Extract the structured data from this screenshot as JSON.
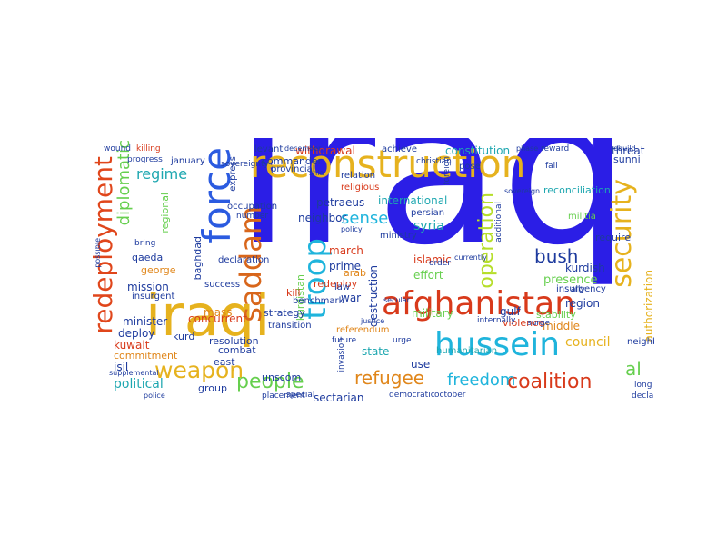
{
  "colors": {
    "blue": "#2b1ee6",
    "gold": "#e6b21e",
    "orange": "#e0861a",
    "red": "#d83a1b",
    "cyan": "#1fb4dc",
    "green": "#66cf4e",
    "lime": "#b6de2a",
    "navy": "#1e3b9e",
    "teal": "#1ea7b0"
  },
  "words": [
    {
      "text": "iraq",
      "color": "#2b1ee6"
    },
    {
      "text": "iraqi",
      "color": "#e6b21e"
    },
    {
      "text": "reconstruction",
      "color": "#e6b21e"
    },
    {
      "text": "afghanistan",
      "color": "#d83a1b"
    },
    {
      "text": "hussein",
      "color": "#1fb4dc"
    },
    {
      "text": "force",
      "color": "#2b5be0"
    },
    {
      "text": "redeployment",
      "color": "#e0461b"
    },
    {
      "text": "security",
      "color": "#e6b21e"
    },
    {
      "text": "saddam",
      "color": "#d8661b"
    },
    {
      "text": "troop",
      "color": "#1fb4dc"
    },
    {
      "text": "weapon",
      "color": "#e6b21e"
    },
    {
      "text": "coalition",
      "color": "#d83a1b"
    },
    {
      "text": "freedom",
      "color": "#1fb4dc"
    },
    {
      "text": "refugee",
      "color": "#e0861a"
    },
    {
      "text": "people",
      "color": "#66cf4e"
    },
    {
      "text": "operation",
      "color": "#b6de2a"
    },
    {
      "text": "bush",
      "color": "#1e3b9e"
    },
    {
      "text": "sense",
      "color": "#1fb4dc"
    },
    {
      "text": "al",
      "color": "#66cf4e"
    },
    {
      "text": "diplomatic",
      "color": "#66cf4e"
    },
    {
      "text": "regime",
      "color": "#1ea7b0"
    },
    {
      "text": "political",
      "color": "#1ea7b0"
    },
    {
      "text": "syria",
      "color": "#1ea7b0"
    },
    {
      "text": "sectarian",
      "color": "#1e3b9e"
    },
    {
      "text": "council",
      "color": "#e6b21e"
    },
    {
      "text": "international",
      "color": "#1ea7b0"
    },
    {
      "text": "constitution",
      "color": "#1ea7b0"
    },
    {
      "text": "withdrawal",
      "color": "#d83a1b"
    },
    {
      "text": "achieve",
      "color": "#1e3b9e"
    },
    {
      "text": "threat",
      "color": "#1e3b9e"
    },
    {
      "text": "military",
      "color": "#66cf4e"
    },
    {
      "text": "islamic",
      "color": "#d83a1b"
    },
    {
      "text": "effort",
      "color": "#66cf4e"
    },
    {
      "text": "presence",
      "color": "#66cf4e"
    },
    {
      "text": "kurdish",
      "color": "#1e3b9e"
    },
    {
      "text": "region",
      "color": "#1e3b9e"
    },
    {
      "text": "insurgency",
      "color": "#1e3b9e"
    },
    {
      "text": "militia",
      "color": "#66cf4e"
    },
    {
      "text": "stability",
      "color": "#66cf4e"
    },
    {
      "text": "violence",
      "color": "#d83a1b"
    },
    {
      "text": "middle",
      "color": "#e0861a"
    },
    {
      "text": "gulf",
      "color": "#1e3b9e"
    },
    {
      "text": "humanitarian",
      "color": "#1ea7b0"
    },
    {
      "text": "state",
      "color": "#1ea7b0"
    },
    {
      "text": "use",
      "color": "#1e3b9e"
    },
    {
      "text": "destruction",
      "color": "#1e3b9e"
    },
    {
      "text": "war",
      "color": "#1e3b9e"
    },
    {
      "text": "kurdistan",
      "color": "#66cf4e"
    },
    {
      "text": "redeploy",
      "color": "#d83a1b"
    },
    {
      "text": "prime",
      "color": "#1e3b9e"
    },
    {
      "text": "march",
      "color": "#d83a1b"
    },
    {
      "text": "arab",
      "color": "#e0861a"
    },
    {
      "text": "law",
      "color": "#1e3b9e"
    },
    {
      "text": "ministry",
      "color": "#1e3b9e"
    },
    {
      "text": "persian",
      "color": "#1e3b9e"
    },
    {
      "text": "neighbor",
      "color": "#1e3b9e"
    },
    {
      "text": "petraeus",
      "color": "#1e3b9e"
    },
    {
      "text": "relation",
      "color": "#1e3b9e"
    },
    {
      "text": "commander",
      "color": "#1e3b9e"
    },
    {
      "text": "reconciliation",
      "color": "#1ea7b0"
    },
    {
      "text": "sunni",
      "color": "#1e3b9e"
    },
    {
      "text": "authorization",
      "color": "#e6b21e"
    },
    {
      "text": "require",
      "color": "#1e3b9e"
    },
    {
      "text": "neighbore",
      "color": "#1e3b9e"
    },
    {
      "text": "strategy",
      "color": "#1e3b9e"
    },
    {
      "text": "referendum",
      "color": "#e0861a"
    },
    {
      "text": "concurrent",
      "color": "#d83a1b"
    },
    {
      "text": "minister",
      "color": "#1e3b9e"
    },
    {
      "text": "mass",
      "color": "#e0861a"
    },
    {
      "text": "deploy",
      "color": "#1e3b9e"
    },
    {
      "text": "kuwait",
      "color": "#d83a1b"
    },
    {
      "text": "isil",
      "color": "#1e3b9e"
    },
    {
      "text": "commitment",
      "color": "#e0861a"
    },
    {
      "text": "mission",
      "color": "#1e3b9e"
    },
    {
      "text": "george",
      "color": "#e0861a"
    },
    {
      "text": "qaeda",
      "color": "#1e3b9e"
    },
    {
      "text": "insurgent",
      "color": "#1e3b9e"
    },
    {
      "text": "resolution",
      "color": "#1e3b9e"
    },
    {
      "text": "kurd",
      "color": "#1e3b9e"
    },
    {
      "text": "combat",
      "color": "#1e3b9e"
    },
    {
      "text": "east",
      "color": "#1e3b9e"
    },
    {
      "text": "group",
      "color": "#1e3b9e"
    },
    {
      "text": "kill",
      "color": "#d83a1b"
    },
    {
      "text": "express",
      "color": "#1e3b9e"
    },
    {
      "text": "regional",
      "color": "#66cf4e"
    },
    {
      "text": "baghdad",
      "color": "#1e3b9e"
    },
    {
      "text": "levant",
      "color": "#1e3b9e"
    },
    {
      "text": "benchmark",
      "color": "#1e3b9e"
    },
    {
      "text": "success",
      "color": "#1e3b9e"
    },
    {
      "text": "declaration",
      "color": "#1e3b9e"
    },
    {
      "text": "occupation",
      "color": "#1e3b9e"
    },
    {
      "text": "provincial",
      "color": "#1e3b9e"
    },
    {
      "text": "religious",
      "color": "#d83a1b"
    },
    {
      "text": "unscom",
      "color": "#1e3b9e"
    },
    {
      "text": "transition",
      "color": "#1e3b9e"
    },
    {
      "text": "urge",
      "color": "#1e3b9e"
    },
    {
      "text": "pose",
      "color": "#1e3b9e"
    },
    {
      "text": "fall",
      "color": "#1e3b9e"
    },
    {
      "text": "future",
      "color": "#1e3b9e"
    },
    {
      "text": "christian",
      "color": "#1e3b9e"
    },
    {
      "text": "placement",
      "color": "#1e3b9e"
    },
    {
      "text": "special",
      "color": "#1e3b9e"
    },
    {
      "text": "democratic",
      "color": "#1e3b9e"
    },
    {
      "text": "october",
      "color": "#1e3b9e"
    },
    {
      "text": "ally",
      "color": "#1e3b9e"
    },
    {
      "text": "long",
      "color": "#1e3b9e"
    },
    {
      "text": "declare",
      "color": "#1e3b9e"
    },
    {
      "text": "december",
      "color": "#1e3b9e"
    },
    {
      "text": "january",
      "color": "#1e3b9e"
    },
    {
      "text": "sovereignty",
      "color": "#1e3b9e"
    },
    {
      "text": "killing",
      "color": "#d83a1b"
    },
    {
      "text": "progress",
      "color": "#1e3b9e"
    },
    {
      "text": "wound",
      "color": "#1e3b9e"
    },
    {
      "text": "reward",
      "color": "#1e3b9e"
    },
    {
      "text": "phase",
      "color": "#1e3b9e"
    },
    {
      "text": "rebuild",
      "color": "#1e3b9e"
    },
    {
      "text": "surge",
      "color": "#1e3b9e"
    },
    {
      "text": "order",
      "color": "#1e3b9e"
    },
    {
      "text": "shia",
      "color": "#1e3b9e"
    },
    {
      "text": "police",
      "color": "#1e3b9e"
    },
    {
      "text": "additional",
      "color": "#1e3b9e"
    },
    {
      "text": "currently",
      "color": "#1e3b9e"
    },
    {
      "text": "foreign",
      "color": "#1e3b9e"
    },
    {
      "text": "sovereign",
      "color": "#1e3b9e"
    },
    {
      "text": "justice",
      "color": "#1e3b9e"
    },
    {
      "text": "secular",
      "color": "#1e3b9e"
    },
    {
      "text": "policy",
      "color": "#1e3b9e"
    },
    {
      "text": "number",
      "color": "#1e3b9e"
    },
    {
      "text": "bring",
      "color": "#1e3b9e"
    },
    {
      "text": "essential",
      "color": "#1e3b9e"
    },
    {
      "text": "supplemental",
      "color": "#1e3b9e"
    },
    {
      "text": "possible",
      "color": "#1e3b9e"
    },
    {
      "text": "invasion",
      "color": "#1e3b9e"
    },
    {
      "text": "internally",
      "color": "#1e3b9e"
    }
  ]
}
